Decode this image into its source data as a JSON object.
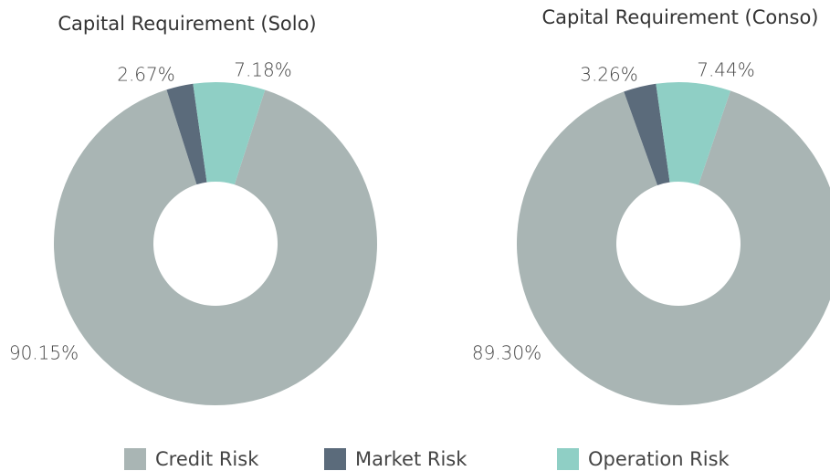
{
  "chart_data": [
    {
      "type": "donut",
      "title": "Capital Requirement (Solo)",
      "categories": [
        "Credit Risk",
        "Market Risk",
        "Operation Risk"
      ],
      "values": [
        90.15,
        2.67,
        7.18
      ],
      "value_labels": [
        "90.15%",
        "2.67%",
        "7.18%"
      ],
      "colors": [
        "#a9b5b4",
        "#5b6b7b",
        "#8fcfc5"
      ],
      "legend": "bottom"
    },
    {
      "type": "donut",
      "title": "Capital Requirement (Conso)",
      "categories": [
        "Credit Risk",
        "Market Risk",
        "Operation Risk"
      ],
      "values": [
        89.3,
        3.26,
        7.44
      ],
      "value_labels": [
        "89.30%",
        "3.26%",
        "7.44%"
      ],
      "colors": [
        "#a9b5b4",
        "#5b6b7b",
        "#8fcfc5"
      ],
      "legend": "bottom"
    }
  ]
}
